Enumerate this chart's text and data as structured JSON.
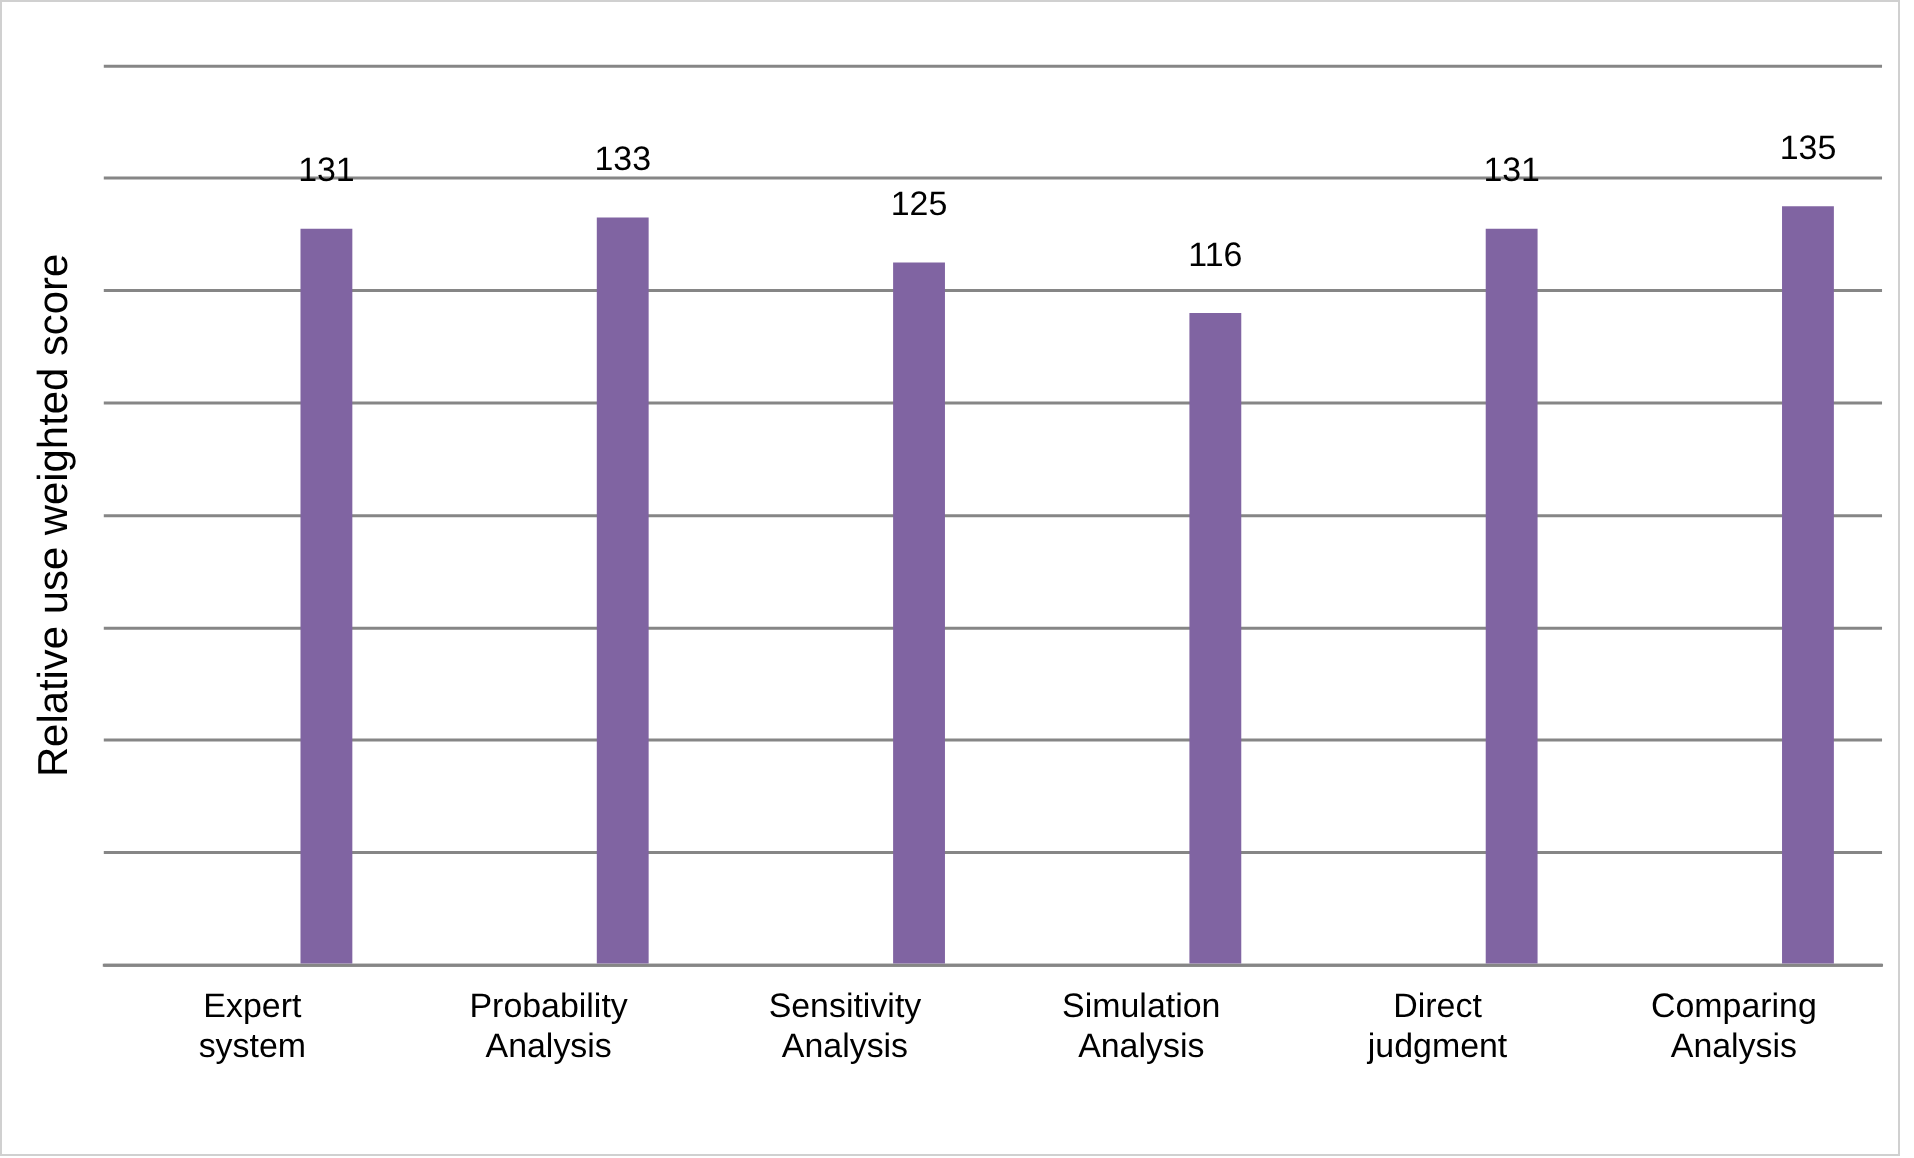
{
  "chart_data": {
    "type": "bar",
    "ylabel": "Relative use weighted score",
    "categories": [
      "Expert system",
      "Probability Analysis",
      "Sensitivity Analysis",
      "Simulation Analysis",
      "Direct judgment",
      "Comparing Analysis"
    ],
    "values": [
      131,
      133,
      125,
      116,
      131,
      135
    ],
    "color": "#8064a2",
    "ylim": [
      0,
      160
    ],
    "yticks": [
      {
        "value": 0,
        "label": null
      },
      {
        "value": 20,
        "label": null
      },
      {
        "value": 40,
        "label": null
      },
      {
        "value": 60,
        "label": null
      },
      {
        "value": 80,
        "label": null
      },
      {
        "value": 100,
        "label": null
      },
      {
        "value": 120,
        "label": null
      },
      {
        "value": 140,
        "label": null
      },
      {
        "value": 160,
        "label": null
      }
    ],
    "tick_labels": "x",
    "grid": "y",
    "legend": false,
    "data_labels": true
  }
}
